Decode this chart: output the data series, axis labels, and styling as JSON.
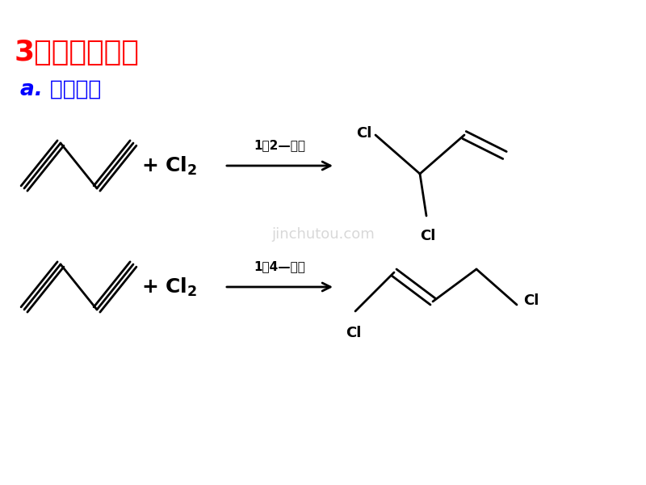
{
  "title1": "3）化学性质：",
  "title1_color": "#FF0000",
  "title2": "a. 加成反应",
  "title2_color": "#0000FF",
  "bg_color": "#FFFFFF",
  "arrow_label1": "1，2—加成",
  "arrow_label2": "1，4—加成",
  "watermark": "jinchutou.com",
  "lw": 2.0
}
